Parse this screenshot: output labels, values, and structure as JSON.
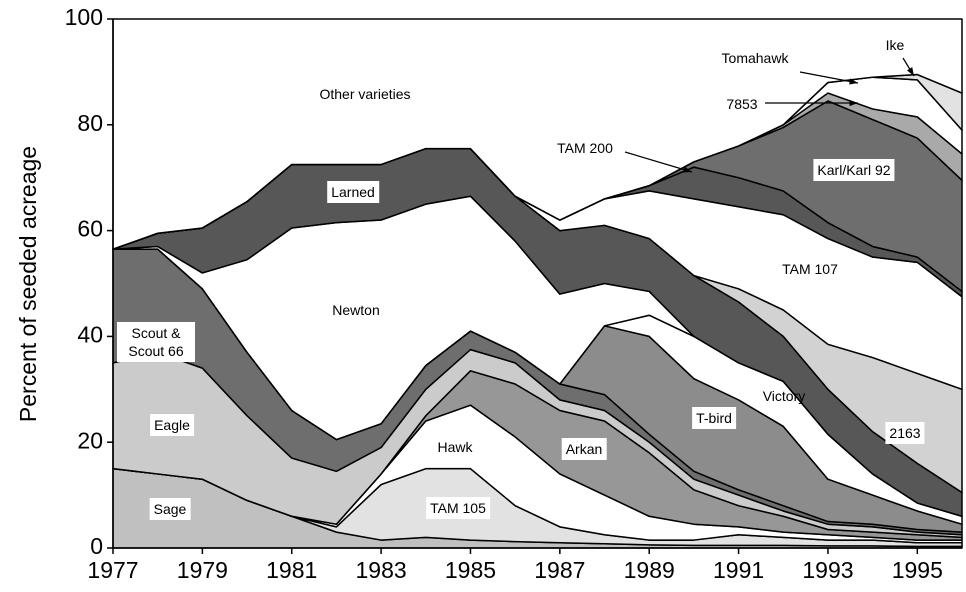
{
  "chart_data": {
    "type": "stacked_area",
    "y_label": "Percent of seeded acreage",
    "x": [
      1977,
      1978,
      1979,
      1980,
      1981,
      1982,
      1983,
      1984,
      1985,
      1986,
      1987,
      1988,
      1989,
      1990,
      1991,
      1992,
      1993,
      1994,
      1995,
      1996
    ],
    "xlim": [
      1977,
      1996
    ],
    "xticks": [
      1977,
      1979,
      1981,
      1983,
      1985,
      1987,
      1989,
      1991,
      1993,
      1995
    ],
    "ylim": [
      0,
      100
    ],
    "yticks": [
      0,
      20,
      40,
      60,
      80,
      100
    ],
    "series": [
      {
        "name": "Sage",
        "color": "#c0c0c0",
        "values": [
          15,
          14,
          13,
          9,
          6,
          3,
          1.5,
          2,
          1.5,
          1.2,
          1,
          0.8,
          0.6,
          0.5,
          0.5,
          0.5,
          0.4,
          0.4,
          0.3,
          0.3
        ]
      },
      {
        "name": "TAM 105",
        "color": "#e2e2e2",
        "values": [
          0,
          0,
          0,
          0,
          0,
          1,
          10.5,
          13,
          13.5,
          6.8,
          3,
          1.7,
          0.9,
          1,
          2,
          1.5,
          1.1,
          1.1,
          0.7,
          0.7
        ]
      },
      {
        "name": "Hawk",
        "color": "#ffffff",
        "values": [
          0,
          0,
          0,
          0,
          0,
          0.5,
          2,
          9,
          12,
          13,
          10,
          7.5,
          4.5,
          3,
          1.5,
          1,
          1,
          0.5,
          0.5,
          0.5
        ]
      },
      {
        "name": "Arkan",
        "color": "#979797",
        "values": [
          0,
          0,
          0,
          0,
          0,
          0,
          0,
          1,
          6.5,
          10,
          12,
          14,
          12,
          6.5,
          4,
          3,
          1,
          1,
          1,
          0.5
        ]
      },
      {
        "name": "Eagle",
        "color": "#cbcbcb",
        "values": [
          20,
          23,
          21,
          16,
          11,
          10,
          5,
          5,
          4,
          4,
          2,
          2,
          2,
          2,
          2,
          1,
          1,
          1,
          0.5,
          0.5
        ]
      },
      {
        "name": "Scout & Scout 66",
        "color": "#6e6e6e",
        "values": [
          21.5,
          19.5,
          15,
          12,
          9,
          6,
          4.5,
          4.5,
          3.5,
          2,
          3,
          3,
          1.5,
          1.5,
          1,
          1,
          0.5,
          0.5,
          0.5,
          0.5
        ]
      },
      {
        "name": "T-bird",
        "color": "#8c8c8c",
        "values": [
          0,
          0,
          0,
          0,
          0,
          0,
          0,
          0,
          0,
          0,
          0,
          13,
          18.5,
          17.5,
          17,
          15,
          8,
          5.5,
          3.5,
          1.5
        ]
      },
      {
        "name": "Victory",
        "color": "#ffffff",
        "values": [
          0,
          0,
          0,
          0,
          0,
          0,
          0,
          0,
          0,
          0,
          0,
          0,
          4,
          8,
          7,
          8.5,
          8.5,
          4,
          1.5,
          1.5
        ]
      },
      {
        "name": "Newton",
        "color": "#ffffff",
        "values": [
          0,
          0.5,
          3,
          17.5,
          34.5,
          41,
          38.5,
          30.5,
          25.5,
          21,
          17,
          8,
          4.5,
          0,
          0,
          0,
          0,
          0,
          0,
          0
        ]
      },
      {
        "name": "Larned",
        "color": "#575757",
        "values": [
          0,
          2.5,
          8.5,
          11,
          12,
          11,
          10.5,
          10.5,
          9,
          8.5,
          12,
          11,
          10,
          11.5,
          11.5,
          8.5,
          8.5,
          8,
          7.5,
          4.5
        ]
      },
      {
        "name": "2163",
        "color": "#d2d2d2",
        "values": [
          0,
          0,
          0,
          0,
          0,
          0,
          0,
          0,
          0,
          0,
          0,
          0,
          0,
          0,
          2.5,
          5,
          8.5,
          14,
          17,
          19.5
        ]
      },
      {
        "name": "TAM 107",
        "color": "#ffffff",
        "values": [
          0,
          0,
          0,
          0,
          0,
          0,
          0,
          0,
          0,
          0,
          2,
          5,
          9,
          14.5,
          15.5,
          18,
          20,
          19,
          21,
          17.5
        ]
      },
      {
        "name": "TAM 200",
        "color": "#575757",
        "values": [
          0,
          0,
          0,
          0,
          0,
          0,
          0,
          0,
          0,
          0,
          0,
          0,
          1,
          6,
          5.5,
          4.5,
          3,
          2,
          1,
          1
        ]
      },
      {
        "name": "Karl/Karl 92",
        "color": "#6e6e6e",
        "values": [
          0,
          0,
          0,
          0,
          0,
          0,
          0,
          0,
          0,
          0,
          0,
          0,
          0,
          1,
          6,
          12,
          23,
          24,
          22.5,
          21
        ]
      },
      {
        "name": "7853",
        "color": "#a9a9a9",
        "values": [
          0,
          0,
          0,
          0,
          0,
          0,
          0,
          0,
          0,
          0,
          0,
          0,
          0,
          0,
          0,
          0.5,
          1.5,
          2,
          4,
          5
        ]
      },
      {
        "name": "Tomahawk",
        "color": "#ffffff",
        "values": [
          0,
          0,
          0,
          0,
          0,
          0,
          0,
          0,
          0,
          0,
          0,
          0,
          0,
          0,
          0,
          0,
          2,
          6,
          7,
          4.5
        ]
      },
      {
        "name": "Ike",
        "color": "#e2e2e2",
        "values": [
          0,
          0,
          0,
          0,
          0,
          0,
          0,
          0,
          0,
          0,
          0,
          0,
          0,
          0,
          0,
          0,
          0,
          0,
          1,
          7
        ]
      },
      {
        "name": "Other varieties",
        "color": "#ffffff",
        "values": [
          43.5,
          40.5,
          39.5,
          34.5,
          27.5,
          27.5,
          27.5,
          24.5,
          24.5,
          33.5,
          38,
          34,
          31.5,
          27,
          24,
          20,
          12,
          11,
          10.5,
          14
        ]
      }
    ]
  }
}
